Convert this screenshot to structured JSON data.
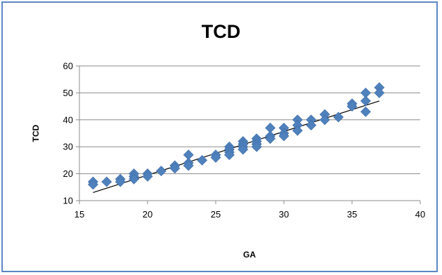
{
  "chart_data": {
    "type": "scatter",
    "title": "TCD",
    "xlabel": "GA",
    "ylabel": "TCD",
    "xlim": [
      15,
      40
    ],
    "ylim": [
      10,
      60
    ],
    "xticks": [
      15,
      20,
      25,
      30,
      35,
      40
    ],
    "yticks": [
      10,
      20,
      30,
      40,
      50,
      60
    ],
    "grid": "horizontal",
    "legend": "none",
    "marker": "diamond",
    "marker_color": "#4f81bd",
    "trendline": {
      "type": "linear",
      "x": [
        16,
        37
      ],
      "y": [
        13,
        47
      ],
      "color": "#000000"
    },
    "series": [
      {
        "x": [
          16,
          16,
          17,
          18,
          18,
          19,
          19,
          19,
          20,
          20,
          21,
          22,
          22,
          23,
          23,
          23,
          24,
          25,
          25,
          26,
          26,
          26,
          26,
          27,
          27,
          27,
          27,
          28,
          28,
          28,
          28,
          29,
          29,
          29,
          30,
          30,
          30,
          31,
          31,
          31,
          32,
          32,
          33,
          33,
          34,
          35,
          35,
          36,
          36,
          36,
          37,
          37
        ],
        "y": [
          17,
          16,
          17,
          18,
          17,
          20,
          19,
          18,
          20,
          19,
          21,
          23,
          22,
          27,
          24,
          23,
          25,
          27,
          26,
          30,
          29,
          28,
          27,
          32,
          31,
          30,
          29,
          33,
          32,
          31,
          30,
          37,
          34,
          33,
          37,
          35,
          34,
          40,
          38,
          36,
          40,
          38,
          42,
          40,
          41,
          46,
          45,
          50,
          47,
          43,
          52,
          50
        ]
      }
    ]
  }
}
